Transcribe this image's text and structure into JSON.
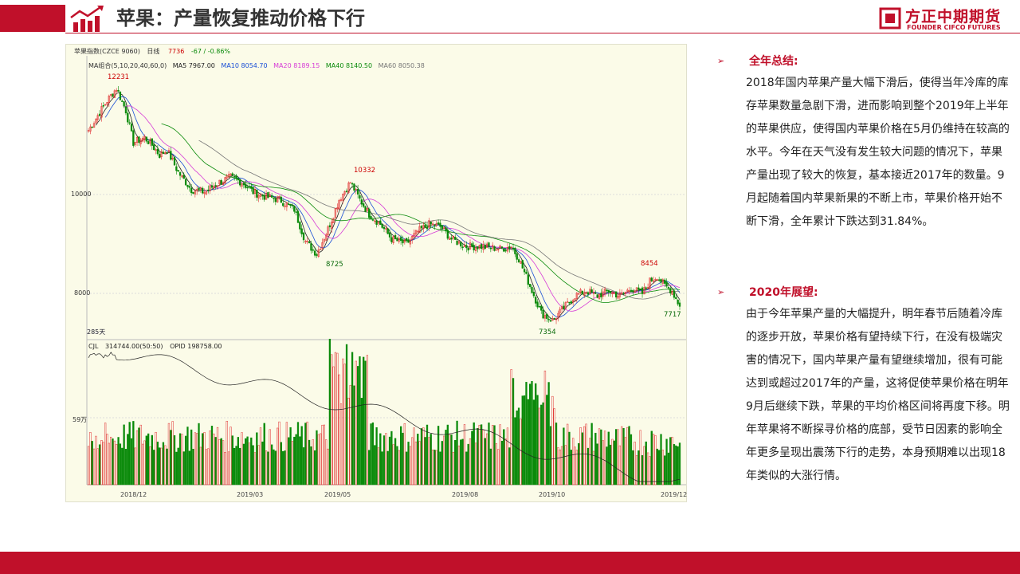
{
  "header": {
    "title": "苹果：产量恢复推动价格下行",
    "brand_cn": "方正中期期货",
    "brand_en": "FOUNDER CIFCO FUTURES"
  },
  "chart": {
    "symbol": "苹果指数(CZCE 9060)",
    "period": "日线",
    "last_price": "7736",
    "change": "-67 / -0.86%",
    "ma": {
      "label": "MA组合(5,10,20,40,60,0)",
      "ma5": "MA5 7967.00",
      "ma10": "MA10 8054.70",
      "ma20": "MA20 8189.15",
      "ma40": "MA40 8140.50",
      "ma60": "MA60 8050.38"
    },
    "y_labels": [
      "10000",
      "8000"
    ],
    "days_label": "285天",
    "volume": {
      "indicator": "CJL",
      "value": "314744.00(50:50)",
      "opid": "OPID 198758.00",
      "y_label": "59万"
    },
    "x_labels": [
      "2018/12",
      "2019/03",
      "2019/05",
      "2019/08",
      "2019/10",
      "2019/12"
    ],
    "annotations": [
      "12231",
      "10332",
      "8725",
      "8454",
      "7354",
      "7717"
    ],
    "colors": {
      "up": "#e03030",
      "down": "#0a8a0a",
      "ma5": "#222222",
      "ma10": "#1a4fd6",
      "ma20": "#d63bd6",
      "ma40": "#0a8a0a",
      "ma60": "#777777"
    }
  },
  "chart_data": {
    "type": "candlestick",
    "title": "苹果指数(CZCE 9060)",
    "y_ticks": [
      10000,
      8000
    ],
    "close_anchors": [
      [
        0,
        11300
      ],
      [
        10,
        11900
      ],
      [
        15,
        12150
      ],
      [
        20,
        11700
      ],
      [
        24,
        11050
      ],
      [
        30,
        11150
      ],
      [
        34,
        11000
      ],
      [
        38,
        10800
      ],
      [
        42,
        10900
      ],
      [
        48,
        10450
      ],
      [
        55,
        10100
      ],
      [
        62,
        10050
      ],
      [
        70,
        10250
      ],
      [
        76,
        10350
      ],
      [
        82,
        10250
      ],
      [
        88,
        10050
      ],
      [
        95,
        9950
      ],
      [
        102,
        9900
      ],
      [
        110,
        9700
      ],
      [
        116,
        9050
      ],
      [
        122,
        8800
      ],
      [
        128,
        9300
      ],
      [
        134,
        9900
      ],
      [
        140,
        10250
      ],
      [
        145,
        9900
      ],
      [
        150,
        9600
      ],
      [
        156,
        9400
      ],
      [
        162,
        9100
      ],
      [
        170,
        9000
      ],
      [
        176,
        9250
      ],
      [
        182,
        9400
      ],
      [
        188,
        9350
      ],
      [
        194,
        9100
      ],
      [
        202,
        8950
      ],
      [
        210,
        8950
      ],
      [
        220,
        8900
      ],
      [
        226,
        8950
      ],
      [
        230,
        8700
      ],
      [
        236,
        8150
      ],
      [
        242,
        7600
      ],
      [
        248,
        7450
      ],
      [
        254,
        7700
      ],
      [
        260,
        7950
      ],
      [
        266,
        8050
      ],
      [
        272,
        7950
      ],
      [
        278,
        8050
      ],
      [
        284,
        7950
      ],
      [
        290,
        8100
      ],
      [
        296,
        8000
      ],
      [
        300,
        8250
      ],
      [
        304,
        8350
      ],
      [
        308,
        8150
      ],
      [
        312,
        8050
      ],
      [
        316,
        7736
      ]
    ],
    "annotated_values": {
      "high_2018": 12231,
      "high_2019_05": 10332,
      "low_2019_04": 8725,
      "low_2019_09": 7354,
      "high_2019_11": 8454,
      "last": 7717
    }
  },
  "summary": {
    "items": [
      {
        "heading": "全年总结:",
        "text": "2018年国内苹果产量大幅下滑后，使得当年冷库的库存苹果数量急剧下滑，进而影响到整个2019年上半年的苹果供应，使得国内苹果价格在5月仍维持在较高的水平。今年在天气没有发生较大问题的情况下，苹果产量出现了较大的恢复，基本接近2017年的数量。9月起随着国内苹果新果的不断上市，苹果价格开始不断下滑，全年累计下跌达到31.84%。"
      },
      {
        "heading": "2020年展望:",
        "text": "由于今年苹果产量的大幅提升，明年春节后随着冷库的逐步开放，苹果价格有望持续下行，在没有极端灾害的情况下，国内苹果产量有望继续增加，很有可能达到或超过2017年的产量，这将促使苹果价格在明年9月后继续下跌，苹果的平均价格区间将再度下移。明年苹果将不断探寻价格的底部，受节日因素的影响全年更多呈现出震荡下行的走势，本身预期难以出现18年类似的大涨行情。"
      }
    ]
  }
}
